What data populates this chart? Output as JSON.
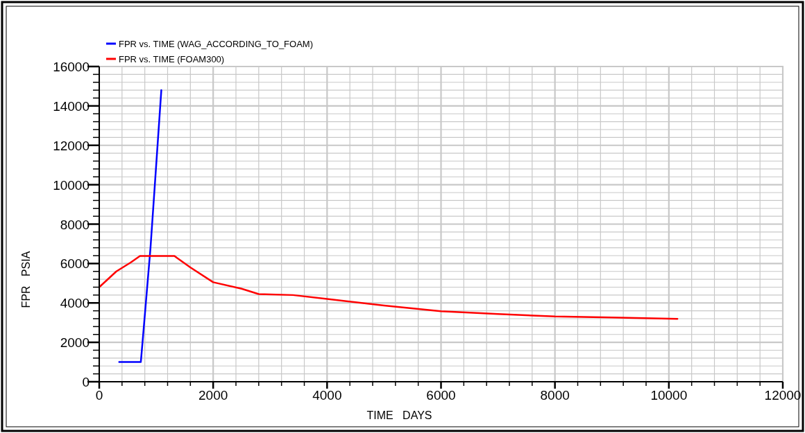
{
  "chart_data": {
    "type": "line",
    "xlabel": "TIME   DAYS",
    "ylabel": "FPR   PSIA",
    "xlim": [
      0,
      12000
    ],
    "ylim": [
      0,
      16000
    ],
    "xticks": [
      0,
      {
        "value": 400,
        "label": null
      },
      {
        "value": 800,
        "label": null
      },
      {
        "value": 1200,
        "label": null
      },
      {
        "value": 1600,
        "label": null
      },
      2000,
      {
        "value": 2400,
        "label": null
      },
      {
        "value": 2800,
        "label": null
      },
      {
        "value": 3200,
        "label": null
      },
      {
        "value": 3600,
        "label": null
      },
      4000,
      {
        "value": 4400,
        "label": null
      },
      {
        "value": 4800,
        "label": null
      },
      {
        "value": 5200,
        "label": null
      },
      {
        "value": 5600,
        "label": null
      },
      6000,
      {
        "value": 6400,
        "label": null
      },
      {
        "value": 6800,
        "label": null
      },
      {
        "value": 7200,
        "label": null
      },
      {
        "value": 7600,
        "label": null
      },
      8000,
      {
        "value": 8400,
        "label": null
      },
      {
        "value": 8800,
        "label": null
      },
      {
        "value": 9200,
        "label": null
      },
      {
        "value": 9600,
        "label": null
      },
      10000,
      {
        "value": 10400,
        "label": null
      },
      {
        "value": 10800,
        "label": null
      },
      {
        "value": 11200,
        "label": null
      },
      {
        "value": 11600,
        "label": null
      },
      12000
    ],
    "yticks": [
      0,
      {
        "value": 400,
        "label": null
      },
      {
        "value": 800,
        "label": null
      },
      {
        "value": 1200,
        "label": null
      },
      {
        "value": 1600,
        "label": null
      },
      2000,
      {
        "value": 2400,
        "label": null
      },
      {
        "value": 2800,
        "label": null
      },
      {
        "value": 3200,
        "label": null
      },
      {
        "value": 3600,
        "label": null
      },
      4000,
      {
        "value": 4400,
        "label": null
      },
      {
        "value": 4800,
        "label": null
      },
      {
        "value": 5200,
        "label": null
      },
      {
        "value": 5600,
        "label": null
      },
      6000,
      {
        "value": 6400,
        "label": null
      },
      {
        "value": 6800,
        "label": null
      },
      {
        "value": 7200,
        "label": null
      },
      {
        "value": 7600,
        "label": null
      },
      8000,
      {
        "value": 8400,
        "label": null
      },
      {
        "value": 8800,
        "label": null
      },
      {
        "value": 9200,
        "label": null
      },
      {
        "value": 9600,
        "label": null
      },
      10000,
      {
        "value": 10400,
        "label": null
      },
      {
        "value": 10800,
        "label": null
      },
      {
        "value": 11200,
        "label": null
      },
      {
        "value": 11600,
        "label": null
      },
      12000,
      {
        "value": 12400,
        "label": null
      },
      {
        "value": 12800,
        "label": null
      },
      {
        "value": 13200,
        "label": null
      },
      {
        "value": 13600,
        "label": null
      },
      14000,
      {
        "value": 14400,
        "label": null
      },
      {
        "value": 14800,
        "label": null
      },
      {
        "value": 15200,
        "label": null
      },
      {
        "value": 15600,
        "label": null
      },
      16000
    ],
    "grid": true,
    "legend": "top left",
    "line_style": "solid",
    "marker": "none",
    "series": [
      {
        "name": "FPR vs. TIME (WAG_ACCORDING_TO_FOAM)",
        "color": "#0000ff",
        "x": [
          350,
          730,
          760,
          900,
          1000,
          1090
        ],
        "values": [
          1000,
          1000,
          2000,
          6800,
          11000,
          14800
        ]
      },
      {
        "name": "FPR vs. TIME (FOAM300)",
        "color": "#ff0000",
        "x": [
          0,
          300,
          550,
          715,
          1000,
          1320,
          1600,
          2000,
          2500,
          2800,
          3400,
          4000,
          5000,
          6000,
          7000,
          8000,
          9000,
          10150
        ],
        "values": [
          4800,
          5600,
          6050,
          6380,
          6380,
          6380,
          5800,
          5050,
          4720,
          4450,
          4400,
          4200,
          3870,
          3580,
          3440,
          3310,
          3260,
          3190
        ]
      }
    ]
  }
}
